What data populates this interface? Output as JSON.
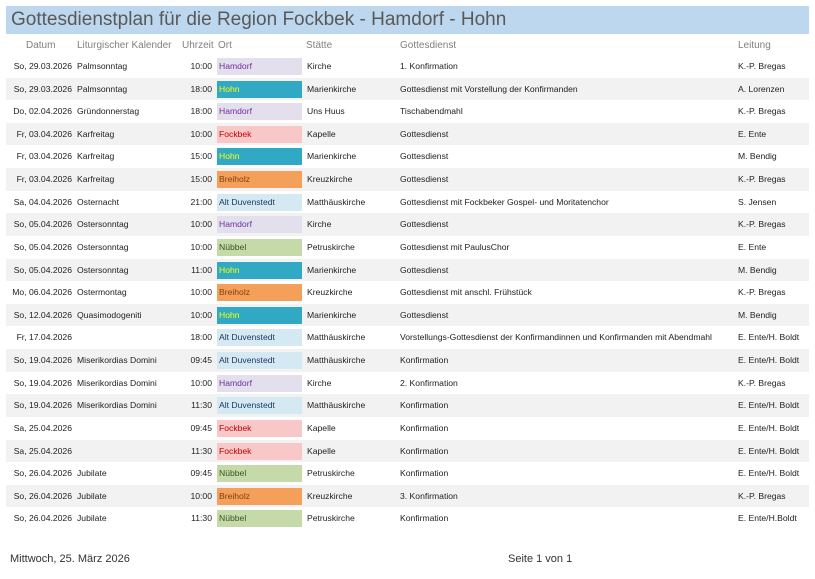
{
  "title": "Gottesdienstplan für die Region Fockbek - Hamdorf - Hohn",
  "headers": {
    "datum": "Datum",
    "kalender": "Liturgischer Kalender",
    "uhrzeit": "Uhrzeit",
    "ort": "Ort",
    "staette": "Stätte",
    "gottesdienst": "Gottesdienst",
    "leitung": "Leitung"
  },
  "ort_colors": {
    "Hamdorf": {
      "bg": "#e4dfec",
      "fg": "#7030a0"
    },
    "Hohn": {
      "bg": "#31a9c5",
      "fg": "#ffff00"
    },
    "Fockbek": {
      "bg": "#f8c8c8",
      "fg": "#c00000"
    },
    "Breiholz": {
      "bg": "#f4a05a",
      "fg": "#843c0c"
    },
    "Alt Duvenstedt": {
      "bg": "#d4e9f1",
      "fg": "#1f3864"
    },
    "Nübbel": {
      "bg": "#c6d9a8",
      "fg": "#375623"
    }
  },
  "rows": [
    {
      "datum": "So, 29.03.2026",
      "kalender": "Palmsonntag",
      "uhrzeit": "10:00",
      "ort": "Hamdorf",
      "staette": "Kirche",
      "gottesdienst": "1. Konfirmation",
      "leitung": "K.-P. Bregas"
    },
    {
      "datum": "So, 29.03.2026",
      "kalender": "Palmsonntag",
      "uhrzeit": "18:00",
      "ort": "Hohn",
      "staette": "Marienkirche",
      "gottesdienst": "Gottesdienst mit Vorstellung der Konfirmanden",
      "leitung": "A. Lorenzen"
    },
    {
      "datum": "Do, 02.04.2026",
      "kalender": "Gründonnerstag",
      "uhrzeit": "18:00",
      "ort": "Hamdorf",
      "staette": "Uns Huus",
      "gottesdienst": "Tischabendmahl",
      "leitung": "K.-P. Bregas"
    },
    {
      "datum": "Fr, 03.04.2026",
      "kalender": "Karfreitag",
      "uhrzeit": "10:00",
      "ort": "Fockbek",
      "staette": "Kapelle",
      "gottesdienst": "Gottesdienst",
      "leitung": "E. Ente"
    },
    {
      "datum": "Fr, 03.04.2026",
      "kalender": "Karfreitag",
      "uhrzeit": "15:00",
      "ort": "Hohn",
      "staette": "Marienkirche",
      "gottesdienst": "Gottesdienst",
      "leitung": "M. Bendig"
    },
    {
      "datum": "Fr, 03.04.2026",
      "kalender": "Karfreitag",
      "uhrzeit": "15:00",
      "ort": "Breiholz",
      "staette": "Kreuzkirche",
      "gottesdienst": "Gottesdienst",
      "leitung": "K.-P. Bregas"
    },
    {
      "datum": "Sa, 04.04.2026",
      "kalender": "Osternacht",
      "uhrzeit": "21:00",
      "ort": "Alt Duvenstedt",
      "staette": "Matthäuskirche",
      "gottesdienst": "Gottesdienst mit Fockbeker Gospel- und Moritatenchor",
      "leitung": "S. Jensen"
    },
    {
      "datum": "So, 05.04.2026",
      "kalender": "Ostersonntag",
      "uhrzeit": "10:00",
      "ort": "Hamdorf",
      "staette": "Kirche",
      "gottesdienst": "Gottesdienst",
      "leitung": "K.-P. Bregas"
    },
    {
      "datum": "So, 05.04.2026",
      "kalender": "Ostersonntag",
      "uhrzeit": "10:00",
      "ort": "Nübbel",
      "staette": "Petruskirche",
      "gottesdienst": "Gottesdienst mit PaulusChor",
      "leitung": "E. Ente"
    },
    {
      "datum": "So, 05.04.2026",
      "kalender": "Ostersonntag",
      "uhrzeit": "11:00",
      "ort": "Hohn",
      "staette": "Marienkirche",
      "gottesdienst": "Gottesdienst",
      "leitung": "M. Bendig"
    },
    {
      "datum": "Mo, 06.04.2026",
      "kalender": "Ostermontag",
      "uhrzeit": "10:00",
      "ort": "Breiholz",
      "staette": "Kreuzkirche",
      "gottesdienst": "Gottesdienst mit anschl. Frühstück",
      "leitung": "K.-P. Bregas"
    },
    {
      "datum": "So, 12.04.2026",
      "kalender": "Quasimodogeniti",
      "uhrzeit": "10:00",
      "ort": "Hohn",
      "staette": "Marienkirche",
      "gottesdienst": "Gottesdienst",
      "leitung": "M. Bendig"
    },
    {
      "datum": "Fr, 17.04.2026",
      "kalender": "",
      "uhrzeit": "18:00",
      "ort": "Alt Duvenstedt",
      "staette": "Matthäuskirche",
      "gottesdienst": "Vorstellungs-Gottesdienst der Konfirmandinnen und Konfirmanden mit Abendmahl",
      "leitung": "E. Ente/H. Boldt"
    },
    {
      "datum": "So, 19.04.2026",
      "kalender": "Miserikordias Domini",
      "uhrzeit": "09:45",
      "ort": "Alt Duvenstedt",
      "staette": "Matthäuskirche",
      "gottesdienst": "Konfirmation",
      "leitung": "E. Ente/H. Boldt"
    },
    {
      "datum": "So, 19.04.2026",
      "kalender": "Miserikordias Domini",
      "uhrzeit": "10:00",
      "ort": "Hamdorf",
      "staette": "Kirche",
      "gottesdienst": "2. Konfirmation",
      "leitung": "K.-P. Bregas"
    },
    {
      "datum": "So, 19.04.2026",
      "kalender": "Miserikordias Domini",
      "uhrzeit": "11:30",
      "ort": "Alt Duvenstedt",
      "staette": "Matthäuskirche",
      "gottesdienst": "Konfirmation",
      "leitung": "E. Ente/H. Boldt"
    },
    {
      "datum": "Sa, 25.04.2026",
      "kalender": "",
      "uhrzeit": "09:45",
      "ort": "Fockbek",
      "staette": "Kapelle",
      "gottesdienst": "Konfirmation",
      "leitung": "E. Ente/H. Boldt"
    },
    {
      "datum": "Sa, 25.04.2026",
      "kalender": "",
      "uhrzeit": "11:30",
      "ort": "Fockbek",
      "staette": "Kapelle",
      "gottesdienst": "Konfirmation",
      "leitung": "E. Ente/H. Boldt"
    },
    {
      "datum": "So, 26.04.2026",
      "kalender": "Jubilate",
      "uhrzeit": "09:45",
      "ort": "Nübbel",
      "staette": "Petruskirche",
      "gottesdienst": "Konfirmation",
      "leitung": "E. Ente/H. Boldt"
    },
    {
      "datum": "So, 26.04.2026",
      "kalender": "Jubilate",
      "uhrzeit": "10:00",
      "ort": "Breiholz",
      "staette": "Kreuzkirche",
      "gottesdienst": "3. Konfirmation",
      "leitung": "K.-P. Bregas"
    },
    {
      "datum": "So, 26.04.2026",
      "kalender": "Jubilate",
      "uhrzeit": "11:30",
      "ort": "Nübbel",
      "staette": "Petruskirche",
      "gottesdienst": "Konfirmation",
      "leitung": "E. Ente/H.Boldt"
    }
  ],
  "footer": {
    "date": "Mittwoch, 25. März 2026",
    "page": "Seite 1 von 1"
  }
}
